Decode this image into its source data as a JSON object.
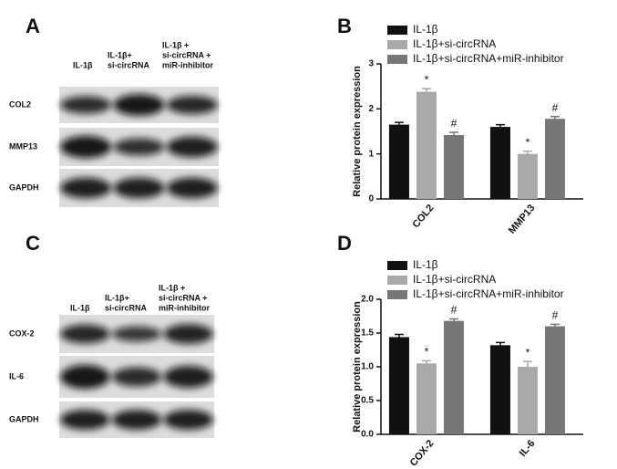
{
  "blots": [
    {
      "panel": "A",
      "lanes": [
        [
          "IL-1β"
        ],
        [
          "IL-1β+",
          "si-circRNA"
        ],
        [
          "IL-1β +",
          "si-circRNA +",
          "miR-inhibitor"
        ]
      ],
      "rows": [
        "COL2",
        "MMP13",
        "GAPDH"
      ]
    },
    {
      "panel": "C",
      "lanes": [
        [
          "IL-1β"
        ],
        [
          "IL-1β+",
          "si-circRNA"
        ],
        [
          "IL-1β +",
          "si-circRNA +",
          "miR-inhibitor"
        ]
      ],
      "rows": [
        "COX-2",
        "IL-6",
        "GAPDH"
      ]
    }
  ],
  "chart_data": [
    {
      "type": "bar",
      "panel": "B",
      "y_label": "Relative protein expression",
      "categories": [
        "COL2",
        "MMP13"
      ],
      "ylim": [
        0,
        3
      ],
      "yticks": [
        0,
        1,
        2,
        3
      ],
      "series": [
        {
          "name": "IL-1β",
          "color": "#111111",
          "values": [
            1.65,
            1.6
          ],
          "errors": [
            0.05,
            0.05
          ]
        },
        {
          "name": "IL-1β+si-circRNA",
          "color": "#a9a9a9",
          "values": [
            2.38,
            1.0
          ],
          "errors": [
            0.07,
            0.06
          ],
          "labels": [
            "*",
            "*"
          ]
        },
        {
          "name": "IL-1β+si-circRNA+miR-inhibitor",
          "color": "#767676",
          "values": [
            1.42,
            1.78
          ],
          "errors": [
            0.06,
            0.05
          ],
          "labels": [
            "#",
            "#"
          ]
        }
      ]
    },
    {
      "type": "bar",
      "panel": "D",
      "y_label": "Relative protein expression",
      "categories": [
        "COX-2",
        "IL-6"
      ],
      "ylim": [
        0,
        2
      ],
      "yticks": [
        {
          "value": 0,
          "label": "0.0"
        },
        0.5,
        {
          "value": 1,
          "label": "1.0"
        },
        1.5,
        {
          "value": 2,
          "label": "2.0"
        }
      ],
      "series": [
        {
          "name": "IL-1β",
          "color": "#111111",
          "values": [
            1.44,
            1.32
          ],
          "errors": [
            0.04,
            0.04
          ]
        },
        {
          "name": "IL-1β+si-circRNA",
          "color": "#a9a9a9",
          "values": [
            1.05,
            1.0
          ],
          "errors": [
            0.04,
            0.08
          ],
          "labels": [
            "*",
            "*"
          ]
        },
        {
          "name": "IL-1β+si-circRNA+miR-inhibitor",
          "color": "#767676",
          "values": [
            1.68,
            1.6
          ],
          "errors": [
            0.03,
            0.03
          ],
          "labels": [
            "#",
            "#"
          ]
        }
      ]
    }
  ]
}
